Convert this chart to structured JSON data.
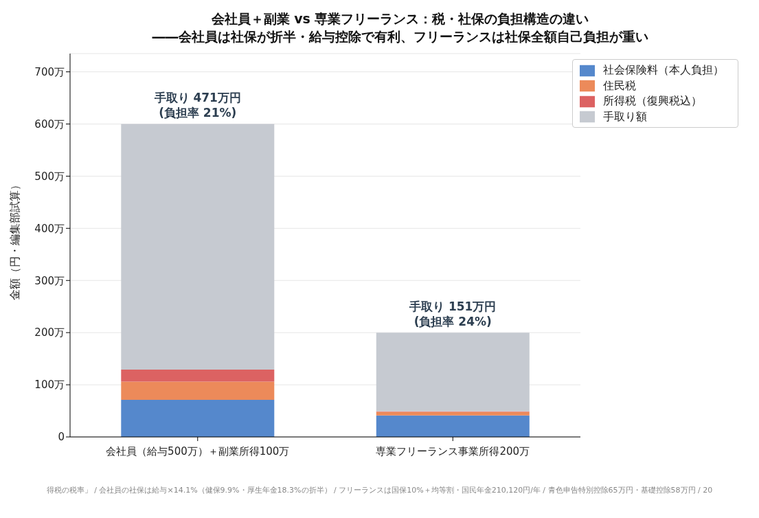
{
  "chart_data": {
    "type": "bar",
    "title": "会社員＋副業 vs 専業フリーランス：税・社保の負担構造の違い\n――会社員は社保が折半・給与控除で有利、フリーランスは社保全額自己負担が重い",
    "ylabel": "金額（円・編集部試算）",
    "categories": [
      "会社員（給与500万）＋副業所得100万",
      "専業フリーランス事業所得200万"
    ],
    "stacked": true,
    "series": [
      {
        "name": "社会保険料（本人負担）",
        "color": "#5588cc",
        "values": [
          71,
          41
        ]
      },
      {
        "name": "住民税",
        "color": "#ec8a5a",
        "values": [
          35,
          7
        ]
      },
      {
        "name": "所得税（復興税込）",
        "color": "#dc6262",
        "values": [
          23,
          1
        ]
      },
      {
        "name": "手取り額",
        "color": "#c6cad1",
        "values": [
          471,
          151
        ]
      }
    ],
    "ylim": [
      0,
      735
    ],
    "yticks": [
      {
        "value": 0,
        "label": "0"
      },
      {
        "value": 100,
        "label": "100万"
      },
      {
        "value": 200,
        "label": "200万"
      },
      {
        "value": 300,
        "label": "300万"
      },
      {
        "value": 400,
        "label": "400万"
      },
      {
        "value": 500,
        "label": "500万"
      },
      {
        "value": 600,
        "label": "600万"
      },
      {
        "value": 700,
        "label": "700万"
      }
    ],
    "grid": "y",
    "legend": "top right",
    "annotations": [
      {
        "text": "手取り 471万円\n(負担率 21%)",
        "x": "会社員（給与500万）＋副業所得100万",
        "y": 600
      },
      {
        "text": "手取り 151万円\n(負担率 24%)",
        "x": "専業フリーランス事業所得200万",
        "y": 200
      },
      "得税の税率」 / 会社員の社保は給与×14.1%（健保9.9%・厚生年金18.3%の折半） / フリーランスは国保10%＋均等割・国民年金210,120円/年 / 青色申告特別控除65万円・基礎控除58万円 / 20"
    ]
  }
}
